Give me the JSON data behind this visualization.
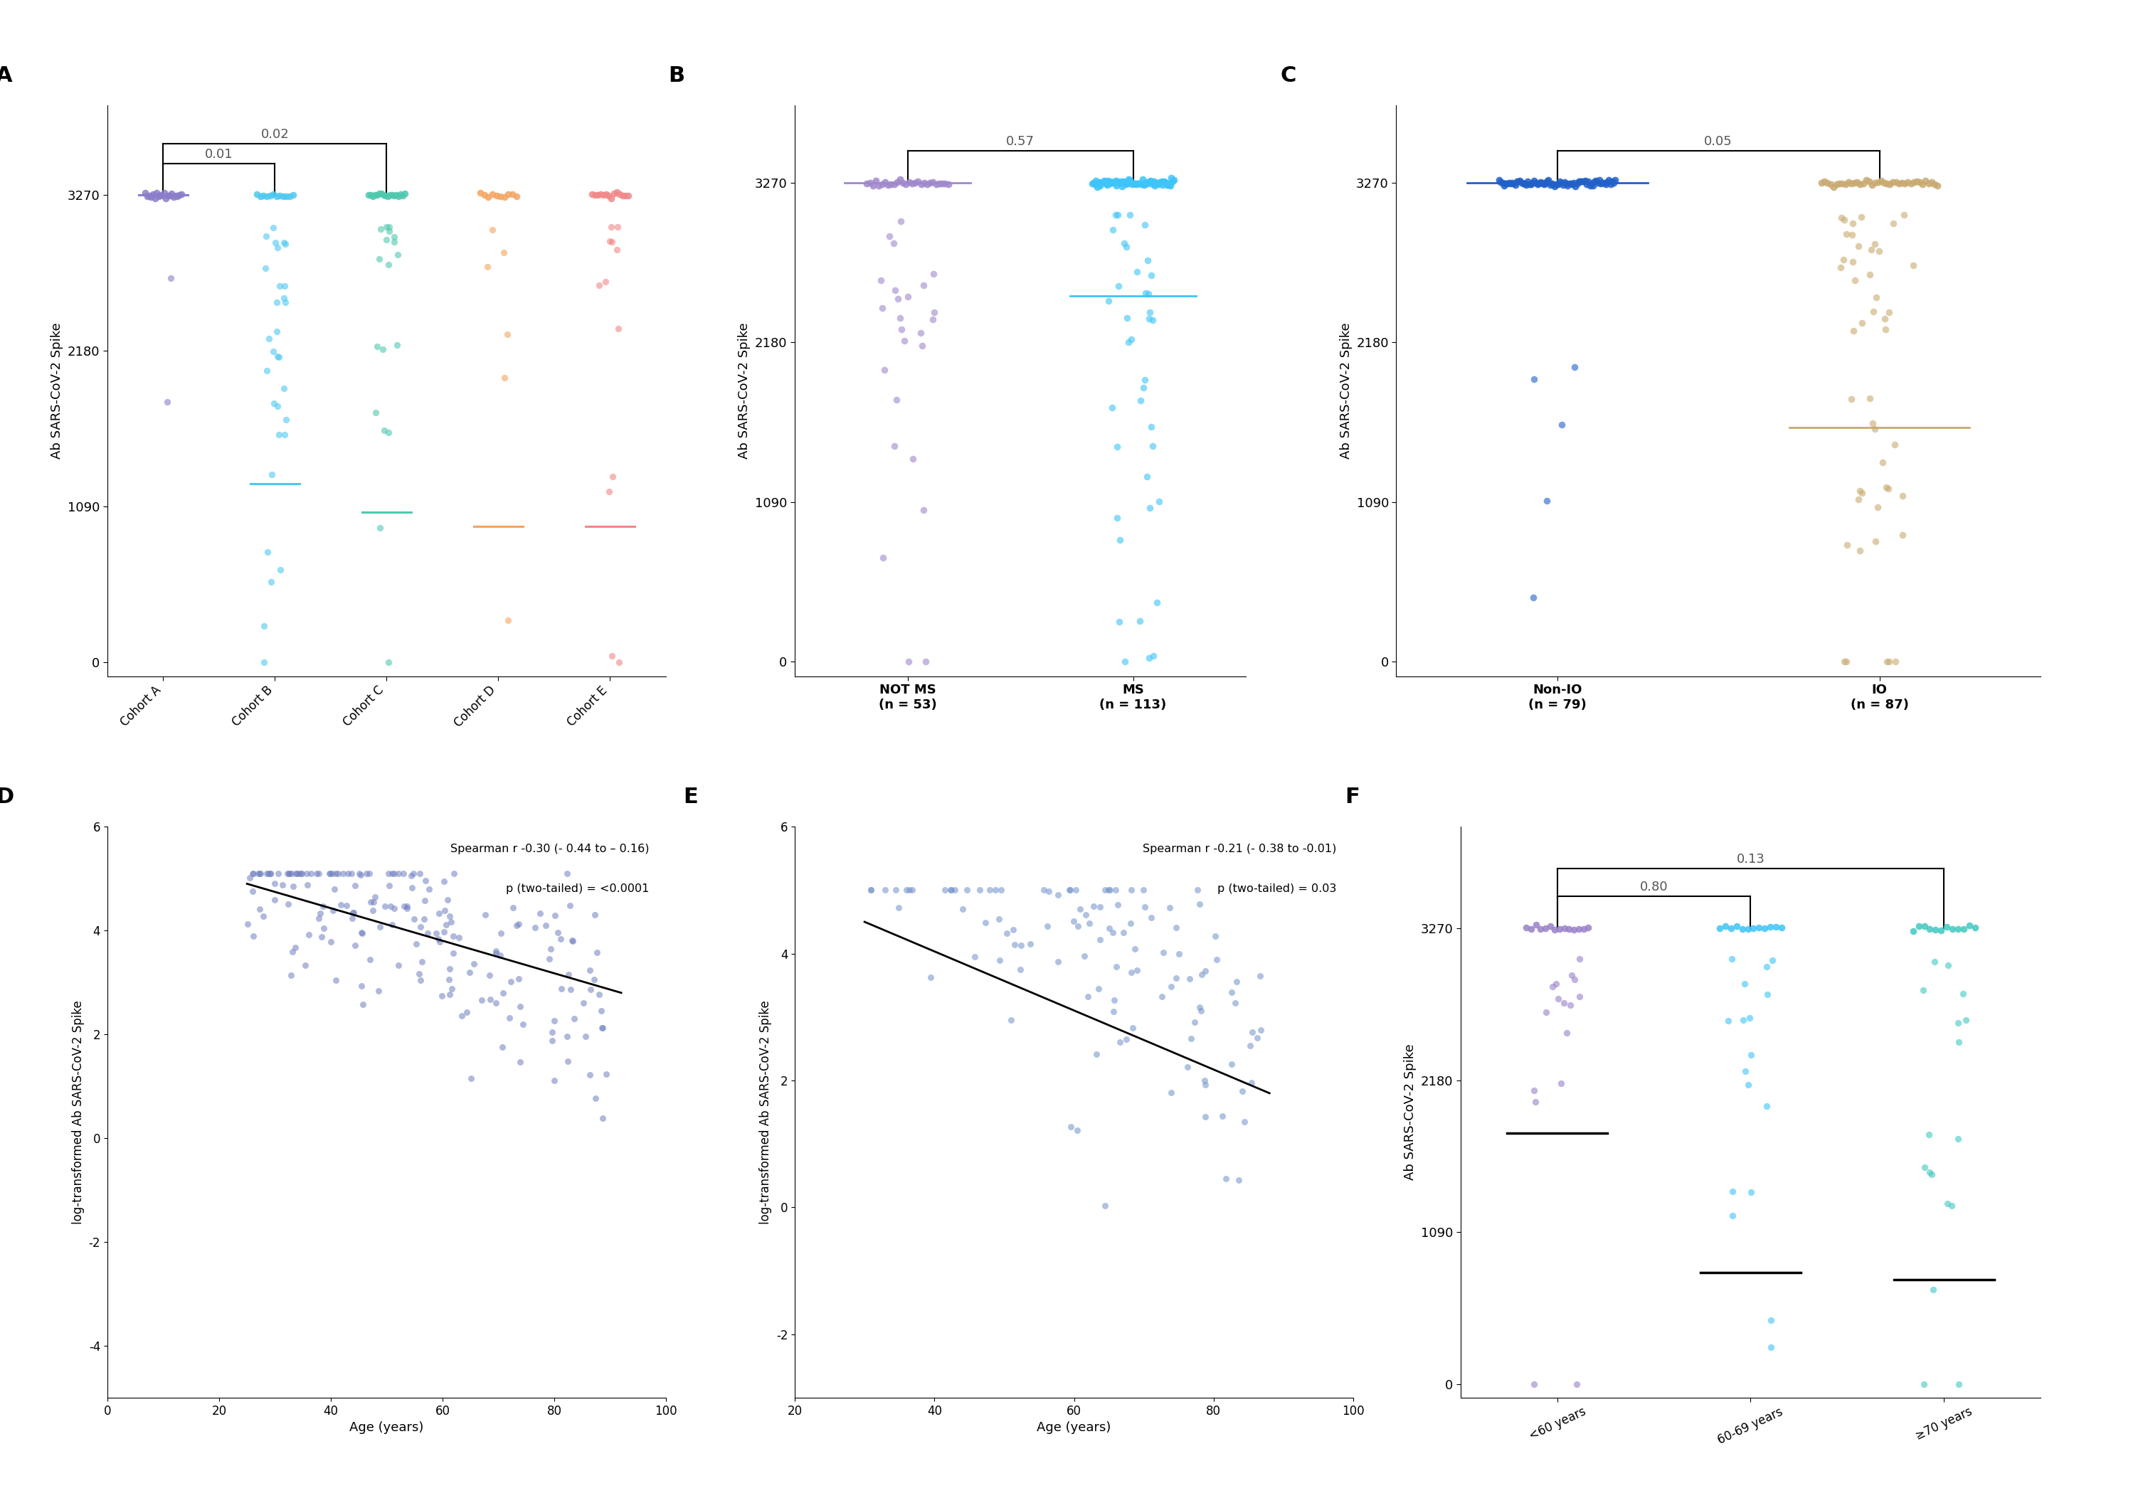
{
  "panel_A": {
    "cohorts": [
      "Cohort A",
      "Cohort B",
      "Cohort C",
      "Cohort D",
      "Cohort E"
    ],
    "colors": [
      "#8B7DC8",
      "#4DC8F0",
      "#50C8B0",
      "#F4A460",
      "#F08888"
    ],
    "n_at_max": [
      20,
      12,
      18,
      10,
      14
    ],
    "n_below": [
      2,
      30,
      18,
      6,
      12
    ],
    "medians": [
      3270,
      1250,
      1050,
      950,
      950
    ],
    "ylabel": "Ab SARS-CoV-2 Spike",
    "yticks": [
      0,
      1090,
      2180,
      3270
    ],
    "ylim": [
      -100,
      3900
    ],
    "bracket_A_B_label": "0.01",
    "bracket_A_C_label": "0.02",
    "xlim": [
      0.5,
      5.5
    ]
  },
  "panel_B": {
    "groups": [
      "NOT MS",
      "MS"
    ],
    "line1": [
      "NOT MS",
      "(n = 53)"
    ],
    "line2": [
      "MS",
      "(n = 113)"
    ],
    "colors": [
      "#A088CC",
      "#3DC4F8"
    ],
    "n_at_max": [
      28,
      75
    ],
    "n_below": [
      25,
      38
    ],
    "medians": [
      3270,
      2500
    ],
    "ylabel": "Ab SARS-CoV-2 Spike",
    "yticks": [
      0,
      1090,
      2180,
      3270
    ],
    "ylim": [
      -100,
      3800
    ],
    "bracket_label": "0.57",
    "xlim": [
      0.5,
      2.5
    ]
  },
  "panel_C": {
    "groups": [
      "Non-IO",
      "IO"
    ],
    "line1": [
      "Non-IO",
      "(n = 79)"
    ],
    "line2": [
      "IO",
      "(n = 87)"
    ],
    "colors": [
      "#2060C8",
      "#C8AA70"
    ],
    "n_at_max": [
      74,
      40
    ],
    "n_below": [
      5,
      47
    ],
    "medians": [
      3270,
      1600
    ],
    "ylabel": "Ab SARS-CoV-2 Spike",
    "yticks": [
      0,
      1090,
      2180,
      3270
    ],
    "ylim": [
      -100,
      3800
    ],
    "bracket_label": "0.05",
    "xlim": [
      0.5,
      2.5
    ]
  },
  "panel_D": {
    "spearman_text": "Spearman r -0.30 (- 0.44 to – 0.16)",
    "p_text": "p (two-tailed) = <0.0001",
    "xlabel": "Age (years)",
    "ylabel": "log-transformed Ab SARS-CoV-2 Spike",
    "xlim": [
      0,
      100
    ],
    "ylim": [
      -5,
      6
    ],
    "xticks": [
      0,
      20,
      40,
      60,
      80,
      100
    ],
    "yticks": [
      -4,
      -2,
      0,
      2,
      4,
      6
    ],
    "color": "#7080C0",
    "line_x1": 25,
    "line_x2": 92,
    "line_y1": 4.9,
    "line_y2": 2.8
  },
  "panel_E": {
    "spearman_text": "Spearman r -0.21 (- 0.38 to -0.01)",
    "p_text": "p (two-tailed) = 0.03",
    "xlabel": "Age (years)",
    "ylabel": "log-transformed Ab SARS-CoV-2 Spike",
    "xlim": [
      20,
      100
    ],
    "ylim": [
      -3,
      6
    ],
    "xticks": [
      20,
      40,
      60,
      80,
      100
    ],
    "yticks": [
      -2,
      0,
      2,
      4,
      6
    ],
    "color": "#7090C8",
    "line_x1": 30,
    "line_x2": 88,
    "line_y1": 4.5,
    "line_y2": 1.8
  },
  "panel_F": {
    "groups": [
      "<60 years",
      "60-69 years",
      "≥70 years"
    ],
    "colors": [
      "#9880C8",
      "#3DC4F8",
      "#40C8C0"
    ],
    "n_at_max": [
      14,
      12,
      12
    ],
    "n_below": [
      16,
      17,
      17
    ],
    "medians": [
      1800,
      800,
      750
    ],
    "ylabel": "Ab SARS-CoV-2 Spike",
    "yticks": [
      0,
      1090,
      2180,
      3270
    ],
    "ylim": [
      -100,
      4000
    ],
    "bracket_1_2_label": "0.80",
    "bracket_1_3_label": "0.13",
    "xlim": [
      0.5,
      3.5
    ]
  },
  "background_color": "#FFFFFF"
}
